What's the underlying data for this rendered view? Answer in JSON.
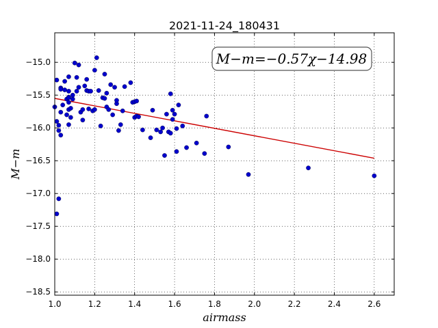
{
  "chart_data": {
    "type": "scatter",
    "title": "2021-11-24_180431",
    "xlabel": "airmass",
    "ylabel": "M−m",
    "xlim": [
      1.0,
      2.7
    ],
    "ylim": [
      -18.55,
      -14.55
    ],
    "x_ticks": [
      "1.0",
      "1.2",
      "1.4",
      "1.6",
      "1.8",
      "2.0",
      "2.2",
      "2.4",
      "2.6"
    ],
    "y_ticks": [
      "−15.0",
      "−15.5",
      "−16.0",
      "−16.5",
      "−17.0",
      "−17.5",
      "−18.0",
      "−18.5"
    ],
    "grid": true,
    "annotation": "M−m=−0.57χ−14.98",
    "fit_line": {
      "slope": -0.57,
      "intercept": -14.98,
      "color": "#cc0000",
      "x_range": [
        1.0,
        2.6
      ]
    },
    "point_color": "#0000cc",
    "x": [
      1.0,
      1.01,
      1.01,
      1.01,
      1.02,
      1.02,
      1.02,
      1.03,
      1.03,
      1.03,
      1.03,
      1.04,
      1.05,
      1.05,
      1.06,
      1.06,
      1.07,
      1.07,
      1.07,
      1.07,
      1.07,
      1.07,
      1.07,
      1.08,
      1.08,
      1.09,
      1.09,
      1.1,
      1.11,
      1.11,
      1.12,
      1.12,
      1.13,
      1.14,
      1.14,
      1.15,
      1.16,
      1.16,
      1.17,
      1.17,
      1.18,
      1.19,
      1.2,
      1.2,
      1.21,
      1.22,
      1.23,
      1.24,
      1.25,
      1.25,
      1.26,
      1.26,
      1.27,
      1.28,
      1.29,
      1.3,
      1.31,
      1.31,
      1.32,
      1.33,
      1.34,
      1.35,
      1.38,
      1.39,
      1.4,
      1.4,
      1.41,
      1.41,
      1.42,
      1.44,
      1.48,
      1.49,
      1.51,
      1.53,
      1.54,
      1.55,
      1.56,
      1.57,
      1.58,
      1.58,
      1.59,
      1.59,
      1.6,
      1.61,
      1.61,
      1.62,
      1.64,
      1.66,
      1.71,
      1.75,
      1.76,
      1.87,
      1.97,
      2.27,
      2.6
    ],
    "y": [
      -15.68,
      -17.31,
      -15.9,
      -15.27,
      -15.96,
      -16.04,
      -17.08,
      -15.39,
      -15.76,
      -16.11,
      -15.41,
      -15.65,
      -15.42,
      -15.29,
      -15.8,
      -15.56,
      -15.53,
      -15.44,
      -15.61,
      -15.95,
      -15.22,
      -15.72,
      -15.54,
      -15.84,
      -15.7,
      -15.56,
      -15.5,
      -15.01,
      -15.23,
      -15.44,
      -15.38,
      -15.04,
      -15.76,
      -15.72,
      -15.88,
      -15.36,
      -15.26,
      -15.43,
      -15.71,
      -15.44,
      -15.44,
      -15.74,
      -15.72,
      -15.12,
      -14.93,
      -15.43,
      -15.97,
      -15.54,
      -15.18,
      -15.55,
      -15.68,
      -15.47,
      -15.72,
      -15.34,
      -15.8,
      -15.38,
      -15.63,
      -15.58,
      -16.04,
      -15.95,
      -15.74,
      -15.37,
      -15.31,
      -15.61,
      -15.6,
      -15.84,
      -15.59,
      -15.82,
      -15.83,
      -16.03,
      -16.15,
      -15.73,
      -16.03,
      -16.06,
      -16.0,
      -16.42,
      -15.79,
      -16.06,
      -16.08,
      -15.48,
      -15.73,
      -15.87,
      -15.79,
      -16.36,
      -16.01,
      -15.65,
      -15.97,
      -16.3,
      -16.23,
      -16.39,
      -15.82,
      -16.29,
      -16.71,
      -16.61,
      -16.73
    ]
  }
}
